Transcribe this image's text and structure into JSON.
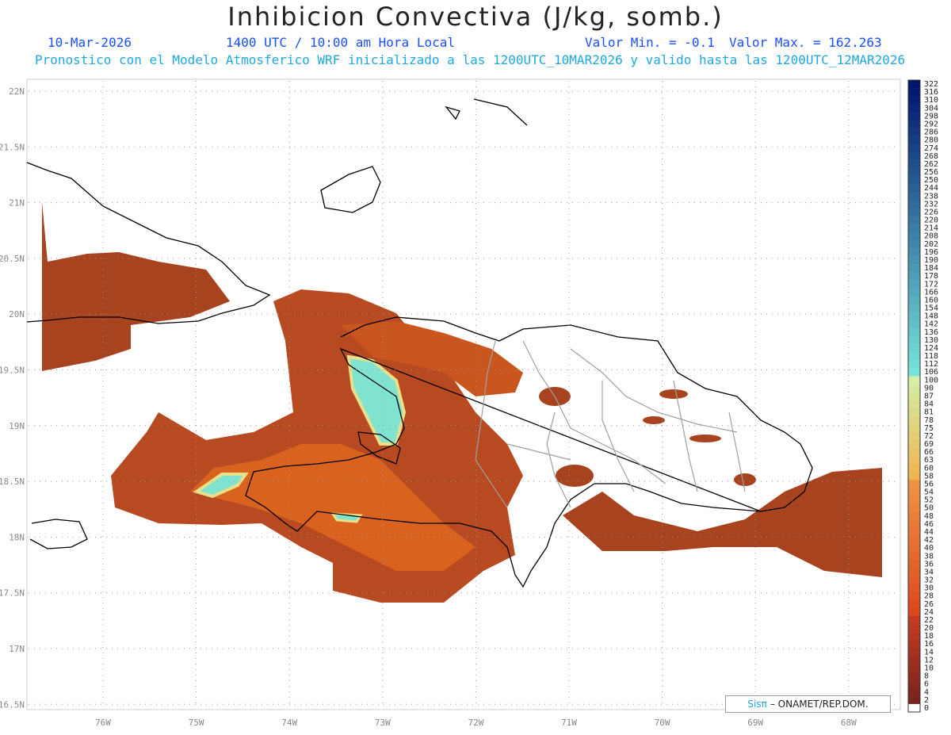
{
  "header": {
    "title": "Inhibicion Convectiva (J/kg, somb.)",
    "date": "10-Mar-2026",
    "time": "1400 UTC / 10:00 am Hora Local",
    "valmin": "Valor Min. = -0.1",
    "valmax": "Valor Max. = 162.263",
    "forecast": "Pronostico con el Modelo Atmosferico WRF inicializado a las 1200UTC_10MAR2026 y valido hasta las  1200UTC_12MAR2026"
  },
  "map": {
    "lat_labels": [
      "22N",
      "21.5N",
      "21N",
      "20.5N",
      "20N",
      "19.5N",
      "19N",
      "18.5N",
      "18N",
      "17.5N",
      "17N",
      "16.5N"
    ],
    "lon_labels": [
      "76W",
      "75W",
      "74W",
      "73W",
      "72W",
      "71W",
      "70W",
      "69W",
      "68W"
    ],
    "colors": {
      "low": "#7a2a20",
      "mid": "#d9561e",
      "orange": "#f47c20",
      "yellow": "#e6d07a",
      "cyan": "#6fe0d0",
      "coast": "#000000",
      "border": "#a0a0a0"
    }
  },
  "colorbar": {
    "labels": [
      "322",
      "316",
      "310",
      "304",
      "298",
      "292",
      "286",
      "280",
      "274",
      "268",
      "262",
      "256",
      "250",
      "244",
      "238",
      "232",
      "226",
      "220",
      "214",
      "208",
      "202",
      "196",
      "190",
      "184",
      "178",
      "172",
      "166",
      "160",
      "154",
      "148",
      "142",
      "136",
      "130",
      "124",
      "118",
      "112",
      "106",
      "100",
      "90",
      "87",
      "84",
      "81",
      "78",
      "75",
      "72",
      "69",
      "66",
      "63",
      "60",
      "58",
      "56",
      "54",
      "52",
      "50",
      "48",
      "46",
      "44",
      "42",
      "40",
      "38",
      "36",
      "34",
      "32",
      "30",
      "28",
      "26",
      "24",
      "22",
      "20",
      "18",
      "16",
      "14",
      "12",
      "10",
      "8",
      "6",
      "4",
      "2",
      "0"
    ]
  },
  "credit": {
    "sis": "Sisπ",
    "text": "– ONAMET/REP.DOM."
  }
}
